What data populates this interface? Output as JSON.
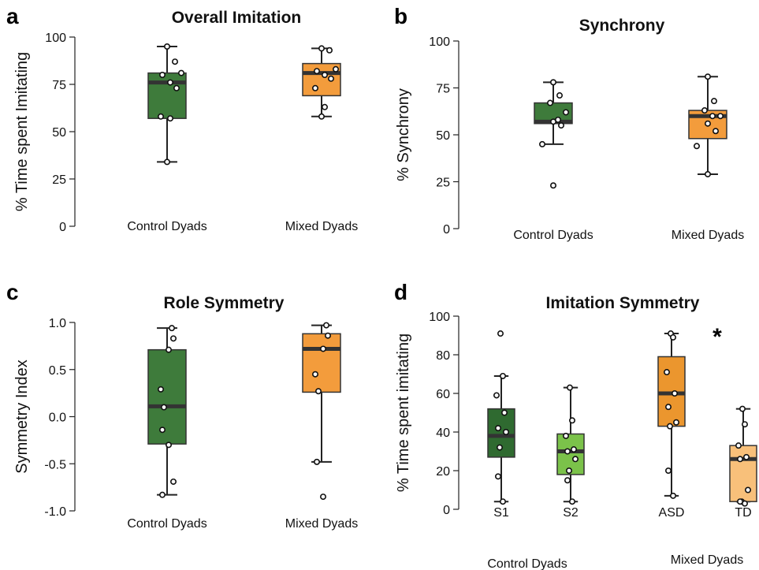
{
  "chart_data": [
    {
      "type": "box",
      "panel_label": "a",
      "title": "Overall Imitation",
      "ylabel": "% Time spent Imitating",
      "ylim": [
        0,
        100
      ],
      "yticks": [
        "0",
        "25",
        "50",
        "75",
        "100"
      ],
      "categories": [
        "Control Dyads",
        "Mixed Dyads"
      ],
      "colors": [
        "#3e7b3b",
        "#f39c3c"
      ],
      "boxes": [
        {
          "whisker_low": 34,
          "q1": 57,
          "median": 76,
          "q3": 81,
          "whisker_high": 95,
          "points": [
            95,
            87,
            81,
            80,
            76,
            73,
            58,
            57,
            34
          ]
        },
        {
          "whisker_low": 58,
          "q1": 69,
          "median": 81,
          "q3": 86,
          "whisker_high": 94,
          "points": [
            94,
            93,
            83,
            82,
            80,
            78,
            73,
            63,
            58
          ]
        }
      ]
    },
    {
      "type": "box",
      "panel_label": "b",
      "title": "Synchrony",
      "ylabel": "% Synchrony",
      "ylim": [
        0,
        100
      ],
      "yticks": [
        "0",
        "25",
        "50",
        "75",
        "100"
      ],
      "categories": [
        "Control Dyads",
        "Mixed Dyads"
      ],
      "colors": [
        "#3e7b3b",
        "#f39c3c"
      ],
      "boxes": [
        {
          "whisker_low": 45,
          "q1": 56,
          "median": 57,
          "q3": 67,
          "whisker_high": 78,
          "points": [
            78,
            71,
            67,
            62,
            58,
            57,
            55,
            45,
            23
          ]
        },
        {
          "whisker_low": 29,
          "q1": 48,
          "median": 60,
          "q3": 63,
          "whisker_high": 81,
          "points": [
            81,
            68,
            63,
            60,
            60,
            56,
            52,
            44,
            29
          ]
        }
      ]
    },
    {
      "type": "box",
      "panel_label": "c",
      "title": "Role Symmetry",
      "ylabel": "Symmetry Index",
      "ylim": [
        -1.0,
        1.0
      ],
      "yticks": [
        "-1.0",
        "-0.5",
        "0.0",
        "0.5",
        "1.0"
      ],
      "categories": [
        "Control Dyads",
        "Mixed Dyads"
      ],
      "colors": [
        "#3e7b3b",
        "#f39c3c"
      ],
      "boxes": [
        {
          "whisker_low": -0.83,
          "q1": -0.29,
          "median": 0.11,
          "q3": 0.71,
          "whisker_high": 0.94,
          "points": [
            0.94,
            0.83,
            0.71,
            0.29,
            0.1,
            -0.14,
            -0.3,
            -0.69,
            -0.83
          ]
        },
        {
          "whisker_low": -0.48,
          "q1": 0.26,
          "median": 0.72,
          "q3": 0.88,
          "whisker_high": 0.97,
          "points": [
            0.97,
            0.86,
            0.72,
            0.45,
            0.27,
            -0.48,
            -0.85
          ]
        }
      ]
    },
    {
      "type": "box",
      "panel_label": "d",
      "title": "Imitation Symmetry",
      "ylabel": "% Time spent imitating",
      "ylim": [
        0,
        100
      ],
      "yticks": [
        "0",
        "20",
        "40",
        "60",
        "80",
        "100"
      ],
      "categories": [
        "S1",
        "S2",
        "ASD",
        "TD"
      ],
      "groups": [
        "Control Dyads",
        "Mixed Dyads"
      ],
      "colors": [
        "#2f6a30",
        "#7bc24a",
        "#eb962e",
        "#f8c07a"
      ],
      "annotation": "*",
      "boxes": [
        {
          "whisker_low": 4,
          "q1": 27,
          "median": 38,
          "q3": 52,
          "whisker_high": 69,
          "points": [
            91,
            69,
            59,
            50,
            42,
            40,
            32,
            17,
            4
          ]
        },
        {
          "whisker_low": 4,
          "q1": 18,
          "median": 30,
          "q3": 39,
          "whisker_high": 63,
          "points": [
            63,
            46,
            38,
            31,
            30,
            26,
            20,
            15,
            4
          ]
        },
        {
          "whisker_low": 7,
          "q1": 43,
          "median": 60,
          "q3": 79,
          "whisker_high": 91,
          "points": [
            91,
            89,
            71,
            60,
            53,
            45,
            43,
            20,
            7
          ]
        },
        {
          "whisker_low": 4,
          "q1": 4,
          "median": 26,
          "q3": 33,
          "whisker_high": 52,
          "points": [
            52,
            44,
            33,
            27,
            26,
            10,
            4,
            4,
            3
          ]
        }
      ]
    }
  ]
}
